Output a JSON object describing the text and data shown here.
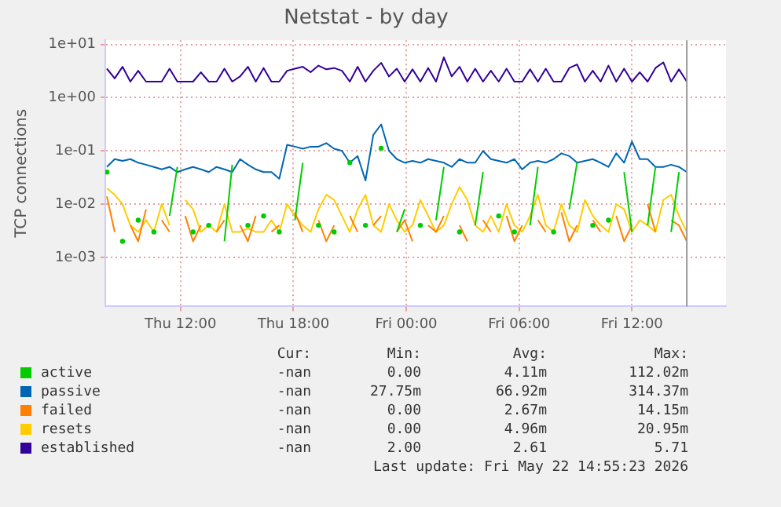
{
  "chart_data": {
    "type": "line",
    "title": "Netstat - by day",
    "ylabel": "TCP connections",
    "log": true,
    "grid": true,
    "legend": "bottom",
    "line_style": "solid",
    "xlim": [
      "2026-05-21T08:00",
      "2026-05-22T17:00"
    ],
    "xticks": [
      {
        "value": "2026-05-21T12:00",
        "label": "Thu 12:00"
      },
      {
        "value": "2026-05-21T18:00",
        "label": "Thu 18:00"
      },
      {
        "value": "2026-05-22T00:00",
        "label": "Fri 00:00"
      },
      {
        "value": "2026-05-22T06:00",
        "label": "Fri 06:00"
      },
      {
        "value": "2026-05-22T12:00",
        "label": "Fri 12:00"
      }
    ],
    "ylim": [
      0.00012,
      12
    ],
    "yticks": [
      {
        "value": 0.001,
        "label": "1e-03"
      },
      {
        "value": 0.01,
        "label": "1e-02"
      },
      {
        "value": 0.1,
        "label": "1e-01"
      },
      {
        "value": 1,
        "label": "1e+00"
      },
      {
        "value": 10,
        "label": "1e+01"
      }
    ],
    "x": [
      "2026-05-21T08:05",
      "2026-05-21T08:30",
      "2026-05-21T08:55",
      "2026-05-21T09:20",
      "2026-05-21T09:45",
      "2026-05-21T10:10",
      "2026-05-21T10:35",
      "2026-05-21T11:00",
      "2026-05-21T11:25",
      "2026-05-21T11:50",
      "2026-05-21T12:15",
      "2026-05-21T12:40",
      "2026-05-21T13:05",
      "2026-05-21T13:30",
      "2026-05-21T13:55",
      "2026-05-21T14:20",
      "2026-05-21T14:45",
      "2026-05-21T15:10",
      "2026-05-21T15:35",
      "2026-05-21T16:00",
      "2026-05-21T16:25",
      "2026-05-21T16:50",
      "2026-05-21T17:15",
      "2026-05-21T17:40",
      "2026-05-21T18:05",
      "2026-05-21T18:30",
      "2026-05-21T18:55",
      "2026-05-21T19:20",
      "2026-05-21T19:45",
      "2026-05-21T20:10",
      "2026-05-21T20:35",
      "2026-05-21T21:00",
      "2026-05-21T21:25",
      "2026-05-21T21:50",
      "2026-05-21T22:15",
      "2026-05-21T22:40",
      "2026-05-21T23:05",
      "2026-05-21T23:30",
      "2026-05-21T23:55",
      "2026-05-22T00:20",
      "2026-05-22T00:45",
      "2026-05-22T01:10",
      "2026-05-22T01:35",
      "2026-05-22T02:00",
      "2026-05-22T02:25",
      "2026-05-22T02:50",
      "2026-05-22T03:15",
      "2026-05-22T03:40",
      "2026-05-22T04:05",
      "2026-05-22T04:30",
      "2026-05-22T04:55",
      "2026-05-22T05:20",
      "2026-05-22T05:45",
      "2026-05-22T06:10",
      "2026-05-22T06:35",
      "2026-05-22T07:00",
      "2026-05-22T07:25",
      "2026-05-22T07:50",
      "2026-05-22T08:15",
      "2026-05-22T08:40",
      "2026-05-22T09:05",
      "2026-05-22T09:30",
      "2026-05-22T09:55",
      "2026-05-22T10:20",
      "2026-05-22T10:45",
      "2026-05-22T11:10",
      "2026-05-22T11:35",
      "2026-05-22T12:00",
      "2026-05-22T12:25",
      "2026-05-22T12:50",
      "2026-05-22T13:15",
      "2026-05-22T13:40",
      "2026-05-22T14:05",
      "2026-05-22T14:30",
      "2026-05-22T14:55"
    ],
    "series": [
      {
        "name": "active",
        "color": "#00cc00",
        "values": [
          0.04,
          null,
          0.002,
          null,
          0.005,
          null,
          0.003,
          null,
          0.006,
          0.05,
          null,
          0.003,
          null,
          0.004,
          null,
          0.002,
          0.055,
          null,
          0.004,
          null,
          0.006,
          null,
          0.003,
          null,
          0.005,
          0.06,
          null,
          0.004,
          null,
          0.003,
          null,
          0.06,
          null,
          0.004,
          null,
          0.112,
          null,
          0.003,
          0.008,
          null,
          0.004,
          null,
          0.005,
          0.05,
          null,
          0.003,
          null,
          0.004,
          0.04,
          null,
          0.006,
          null,
          0.003,
          null,
          0.004,
          0.05,
          null,
          0.003,
          null,
          0.008,
          0.06,
          null,
          0.004,
          null,
          0.005,
          null,
          0.04,
          0.003,
          null,
          0.004,
          0.05,
          null,
          0.003,
          0.04,
          null
        ]
      },
      {
        "name": "passive",
        "color": "#0066b3",
        "values": [
          0.05,
          0.07,
          0.065,
          0.07,
          0.06,
          0.055,
          0.05,
          0.045,
          0.05,
          0.04,
          0.045,
          0.05,
          0.045,
          0.04,
          0.05,
          0.045,
          0.04,
          0.07,
          0.055,
          0.045,
          0.04,
          0.04,
          0.03,
          0.13,
          0.12,
          0.11,
          0.12,
          0.12,
          0.14,
          0.11,
          0.1,
          0.06,
          0.08,
          0.02775,
          0.2,
          0.3144,
          0.1,
          0.07,
          0.06,
          0.065,
          0.06,
          0.07,
          0.065,
          0.06,
          0.05,
          0.07,
          0.06,
          0.06,
          0.1,
          0.07,
          0.065,
          0.06,
          0.07,
          0.045,
          0.06,
          0.065,
          0.06,
          0.07,
          0.09,
          0.08,
          0.06,
          0.065,
          0.07,
          0.06,
          0.05,
          0.09,
          0.06,
          0.15,
          0.07,
          0.07,
          0.05,
          0.05,
          0.055,
          0.05,
          0.04
        ]
      },
      {
        "name": "failed",
        "color": "#ff8000",
        "values": [
          0.014,
          0.003,
          null,
          0.004,
          0.002,
          0.008,
          null,
          0.005,
          0.003,
          null,
          0.006,
          0.002,
          0.004,
          null,
          0.003,
          0.005,
          null,
          0.004,
          0.002,
          0.006,
          null,
          0.003,
          0.004,
          null,
          0.007,
          0.003,
          null,
          0.005,
          0.002,
          0.004,
          null,
          0.006,
          0.003,
          null,
          0.004,
          0.006,
          null,
          0.003,
          0.005,
          0.002,
          null,
          0.004,
          0.003,
          0.006,
          null,
          0.004,
          0.002,
          null,
          0.005,
          0.003,
          null,
          0.006,
          0.002,
          0.004,
          null,
          0.005,
          0.003,
          null,
          0.007,
          0.002,
          0.004,
          null,
          0.005,
          0.003,
          null,
          0.006,
          0.002,
          0.004,
          null,
          0.01,
          0.003,
          null,
          0.005,
          0.004,
          0.002
        ]
      },
      {
        "name": "resets",
        "color": "#ffcc00",
        "values": [
          0.02,
          0.015,
          0.01,
          0.004,
          0.003,
          0.005,
          0.003,
          0.01,
          0.004,
          null,
          0.012,
          0.008,
          0.003,
          0.004,
          0.003,
          0.01,
          0.003,
          0.003,
          0.0035,
          0.003,
          0.003,
          0.005,
          0.003,
          0.01,
          0.006,
          0.004,
          0.003,
          0.008,
          0.015,
          0.012,
          0.006,
          0.003,
          0.008,
          0.015,
          0.004,
          0.003,
          0.01,
          0.005,
          0.003,
          0.004,
          0.012,
          0.006,
          0.003,
          0.004,
          0.01,
          0.02095,
          0.012,
          0.004,
          0.003,
          0.006,
          0.003,
          0.01,
          0.004,
          0.003,
          0.006,
          0.015,
          0.004,
          0.003,
          0.01,
          0.004,
          0.003,
          0.012,
          0.006,
          0.004,
          0.003,
          0.01,
          0.008,
          0.003,
          0.005,
          0.004,
          0.003,
          0.012,
          0.015,
          0.006,
          0.003
        ]
      },
      {
        "name": "established",
        "color": "#330099",
        "values": [
          3.5,
          2.3,
          3.8,
          2.0,
          3.2,
          2.0,
          2.0,
          2.0,
          3.5,
          2.0,
          2.0,
          2.0,
          3.0,
          2.0,
          2.0,
          3.5,
          2.0,
          2.5,
          3.8,
          2.0,
          3.6,
          2.0,
          2.0,
          3.2,
          3.5,
          3.8,
          3.0,
          4.0,
          3.4,
          3.6,
          3.2,
          2.0,
          3.8,
          2.0,
          3.2,
          4.5,
          2.5,
          3.5,
          2.0,
          3.4,
          2.0,
          3.6,
          2.0,
          5.71,
          2.5,
          3.8,
          2.0,
          3.5,
          2.0,
          3.2,
          2.0,
          3.5,
          2.0,
          2.0,
          3.4,
          2.0,
          3.5,
          2.0,
          2.0,
          3.6,
          4.2,
          2.0,
          3.2,
          2.0,
          4.0,
          2.0,
          3.5,
          2.0,
          3.0,
          2.0,
          3.6,
          4.6,
          2.0,
          3.4,
          2.0
        ]
      }
    ],
    "ref_lines": [
      {
        "axis": "x",
        "value": "2026-05-22T14:55",
        "label": null,
        "color": "#999999"
      }
    ],
    "annotations": [
      "Cur:",
      "Min:",
      "Avg:",
      "Max:",
      "-nan",
      "0.00",
      "4.11m",
      "112.02m",
      "-nan",
      "27.75m",
      "66.92m",
      "314.37m",
      "-nan",
      "0.00",
      "2.67m",
      "14.15m",
      "-nan",
      "0.00",
      "4.96m",
      "20.95m",
      "-nan",
      "2.00",
      "2.61",
      "5.71",
      "Last update: Fri May 22 14:55:23 2026"
    ]
  }
}
